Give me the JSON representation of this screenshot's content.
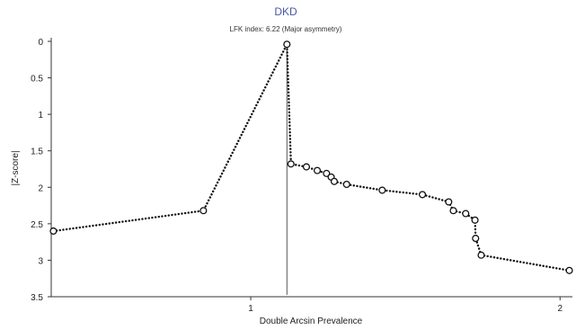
{
  "chart_data": {
    "type": "line",
    "title": "DKD",
    "subtitle": "LFK index: 6.22 (Major asymmetry)",
    "xlabel": "Double Arcsin Prevalence",
    "ylabel": "|Z-score|",
    "xlim": [
      0.355,
      2.04
    ],
    "ylim": [
      0,
      3.5
    ],
    "y_inverted": true,
    "x_ticks": [
      "1",
      "2"
    ],
    "x_tick_values": [
      1,
      2
    ],
    "y_ticks": [
      "0",
      "0.5",
      "1",
      "1.5",
      "2",
      "2.5",
      "3",
      "3.5"
    ],
    "y_tick_values": [
      0,
      0.5,
      1,
      1.5,
      2,
      2.5,
      3,
      3.5
    ],
    "reference_line_x": 1.117,
    "grid": false,
    "line_style": "dotted",
    "marker": "open-circle",
    "colors": {
      "line": "#111111",
      "title": "#4a56a6",
      "axis": "#333333"
    },
    "points": [
      {
        "x": 0.362,
        "y": 2.6
      },
      {
        "x": 0.847,
        "y": 2.32
      },
      {
        "x": 1.117,
        "y": 0.04
      },
      {
        "x": 1.13,
        "y": 1.68
      },
      {
        "x": 1.18,
        "y": 1.72
      },
      {
        "x": 1.215,
        "y": 1.77
      },
      {
        "x": 1.245,
        "y": 1.81
      },
      {
        "x": 1.26,
        "y": 1.86
      },
      {
        "x": 1.27,
        "y": 1.92
      },
      {
        "x": 1.31,
        "y": 1.96
      },
      {
        "x": 1.425,
        "y": 2.04
      },
      {
        "x": 1.555,
        "y": 2.1
      },
      {
        "x": 1.64,
        "y": 2.2
      },
      {
        "x": 1.655,
        "y": 2.32
      },
      {
        "x": 1.695,
        "y": 2.36
      },
      {
        "x": 1.725,
        "y": 2.45
      },
      {
        "x": 1.727,
        "y": 2.7
      },
      {
        "x": 1.745,
        "y": 2.93
      },
      {
        "x": 2.03,
        "y": 3.14
      }
    ]
  }
}
